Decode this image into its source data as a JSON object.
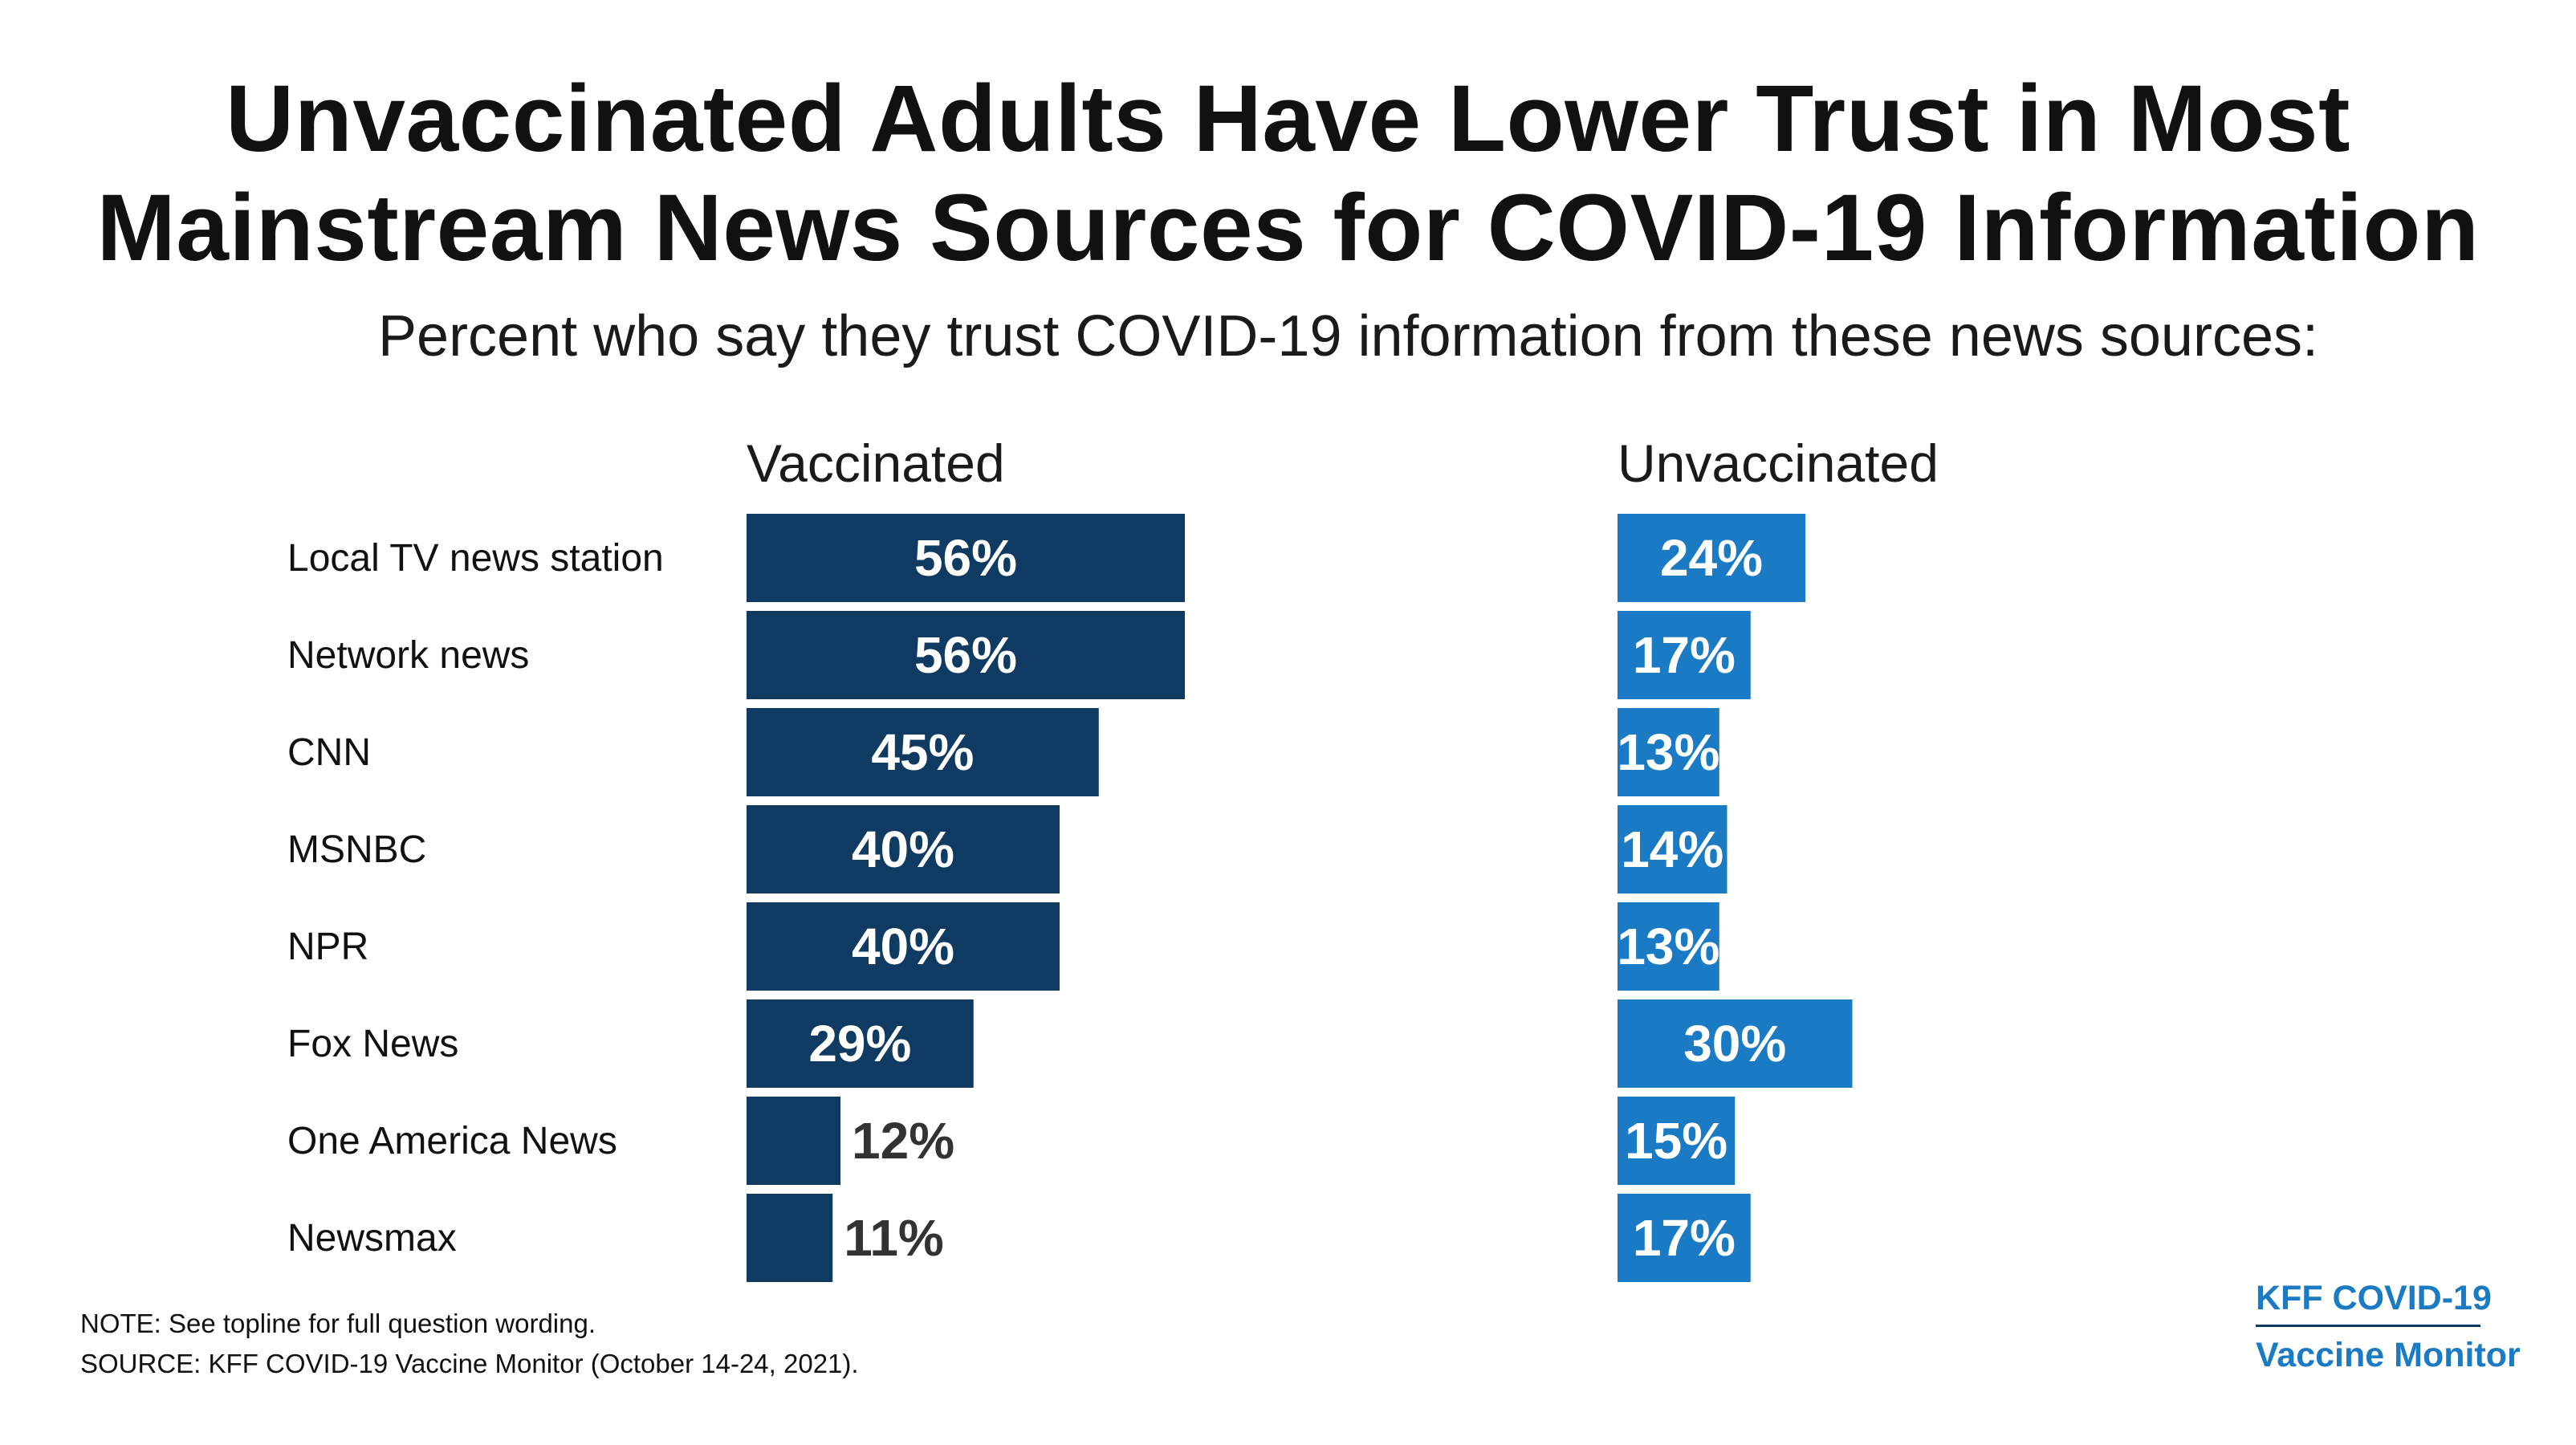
{
  "title_lines": [
    "Unvaccinated Adults Have Lower Trust in Most",
    "Mainstream News Sources for COVID-19 Information"
  ],
  "subtitle": "Percent who say they trust COVID-19 information from these news sources:",
  "chart_data": {
    "type": "bar",
    "orientation": "horizontal",
    "categories": [
      "Local TV news station",
      "Network news",
      "CNN",
      "MSNBC",
      "NPR",
      "Fox News",
      "One America News",
      "Newsmax"
    ],
    "series": [
      {
        "name": "Vaccinated",
        "values": [
          56,
          56,
          45,
          40,
          40,
          29,
          12,
          11
        ],
        "labels": [
          "56%",
          "56%",
          "45%",
          "40%",
          "40%",
          "29%",
          "12%",
          "11%"
        ],
        "color": "#0f3b63"
      },
      {
        "name": "Unvaccinated",
        "values": [
          24,
          17,
          13,
          14,
          13,
          30,
          15,
          17
        ],
        "labels": [
          "24%",
          "17%",
          "13%",
          "14%",
          "13%",
          "30%",
          "15%",
          "17%"
        ],
        "color": "#1a7ac4"
      }
    ],
    "xlim": [
      0,
      100
    ],
    "grid": false,
    "legend": "panel headers above each series"
  },
  "footer": {
    "note": "NOTE: See topline for full question wording.",
    "source": "SOURCE: KFF COVID-19 Vaccine Monitor (October 14-24, 2021)."
  },
  "logo": {
    "line1": "KFF COVID-19",
    "line2": "Vaccine Monitor",
    "color": "#1a7ac4"
  }
}
